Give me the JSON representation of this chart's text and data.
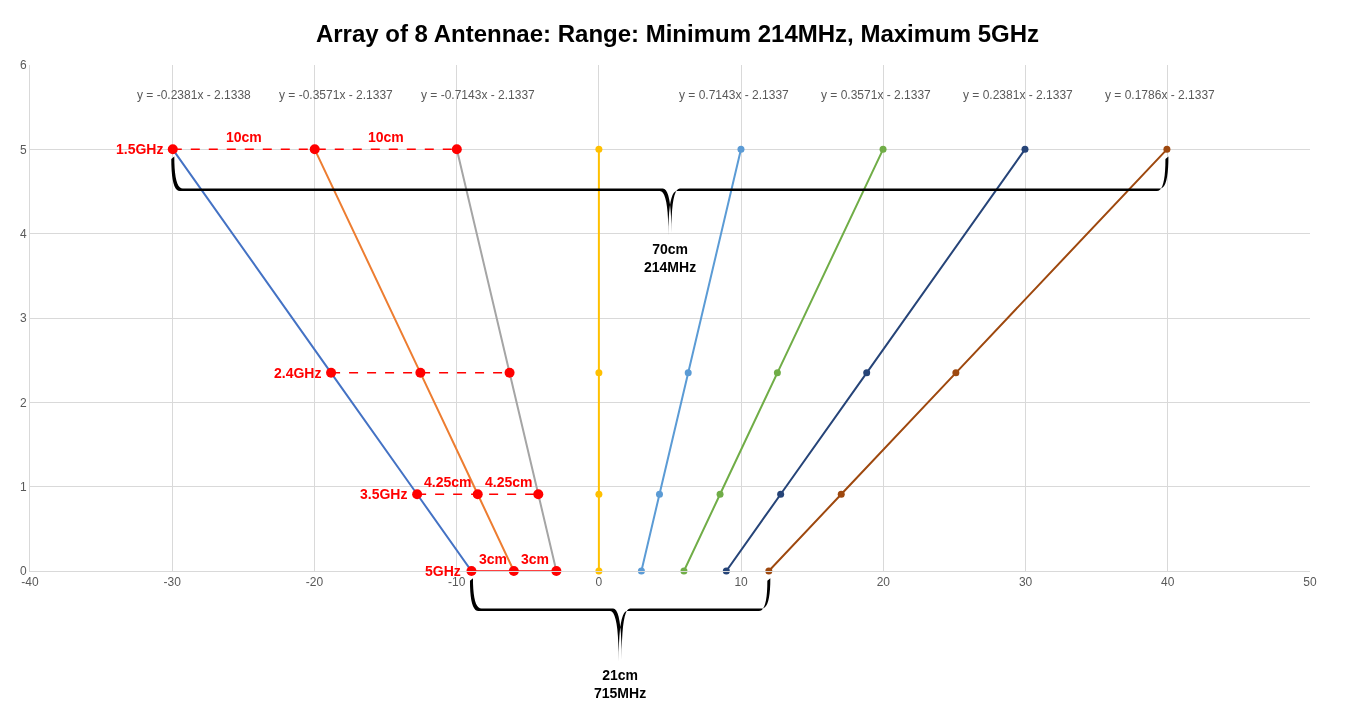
{
  "chart_data": {
    "type": "line",
    "title": "Array of 8 Antennae: Range: Minimum 214MHz, Maximum 5GHz",
    "xlim": [
      -40,
      50
    ],
    "xticks": [
      -40,
      -30,
      -20,
      -10,
      0,
      10,
      20,
      30,
      40,
      50
    ],
    "ylim": [
      0,
      6
    ],
    "yticks": [
      0,
      1,
      2,
      3,
      4,
      5,
      6
    ],
    "grid": true,
    "marker": "circle",
    "series": [
      {
        "color": "#4472c4",
        "colors": [
          "#ff0000",
          "#ff0000",
          "#ff0000",
          "#ff0000"
        ],
        "x": [
          -29.96,
          -18.83,
          -12.78,
          -8.96
        ],
        "values": [
          5,
          2.35,
          0.91,
          0
        ]
      },
      {
        "color": "#ed7d31",
        "colors": [
          "#ff0000",
          "#ff0000",
          "#ff0000",
          "#ff0000"
        ],
        "x": [
          -19.98,
          -12.55,
          -8.52,
          -5.98
        ],
        "values": [
          5,
          2.35,
          0.91,
          0
        ]
      },
      {
        "color": "#a5a5a5",
        "colors": [
          "#ff0000",
          "#ff0000",
          "#ff0000",
          "#ff0000"
        ],
        "x": [
          -9.99,
          -6.28,
          -4.26,
          -2.99
        ],
        "values": [
          5,
          2.35,
          0.91,
          0
        ]
      },
      {
        "color": "#ffc000",
        "x": [
          0,
          0,
          0,
          0
        ],
        "values": [
          5,
          2.35,
          0.91,
          0
        ]
      },
      {
        "color": "#5b9bd5",
        "x": [
          9.99,
          6.28,
          4.26,
          2.99
        ],
        "values": [
          5,
          2.35,
          0.91,
          0
        ]
      },
      {
        "color": "#70ad47",
        "x": [
          19.98,
          12.55,
          8.52,
          5.98
        ],
        "values": [
          5,
          2.35,
          0.91,
          0
        ]
      },
      {
        "color": "#264478",
        "x": [
          29.96,
          18.83,
          12.78,
          8.96
        ],
        "values": [
          5,
          2.35,
          0.91,
          0
        ]
      },
      {
        "color": "#9e480e",
        "x": [
          39.94,
          25.1,
          17.04,
          11.95
        ],
        "values": [
          5,
          2.35,
          0.91,
          0
        ]
      },
      {
        "color": "#ff0000",
        "line_style": "dashed",
        "marker": "none",
        "x": [
          -29.96,
          -9.99
        ],
        "values": [
          5,
          5
        ]
      },
      {
        "color": "#ff0000",
        "line_style": "dashed",
        "marker": "none",
        "x": [
          -18.83,
          -6.28
        ],
        "values": [
          2.35,
          2.35
        ]
      },
      {
        "color": "#ff0000",
        "line_style": "dashed",
        "marker": "none",
        "x": [
          -12.78,
          -4.26
        ],
        "values": [
          0.91,
          0.91
        ]
      },
      {
        "color": "#ff0000",
        "line_style": "solid",
        "marker": "none",
        "x": [
          -8.96,
          -2.99
        ],
        "values": [
          0,
          0
        ]
      }
    ],
    "annotations": [
      "y = -0.2381x - 2.1338",
      "y = -0.3571x - 2.1337",
      "y = -0.7143x - 2.1337",
      "y = 0.7143x - 2.1337",
      "y = 0.3571x - 2.1337",
      "y = 0.2381x - 2.1337",
      "y = 0.1786x - 2.1337",
      "70cm\n214MHz",
      "21cm\n715MHz",
      {
        "text": "1.5GHz",
        "x": -29.96,
        "y": 5
      },
      {
        "text": "10cm",
        "x": -24.97,
        "y": 5
      },
      {
        "text": "10cm",
        "x": -14.99,
        "y": 5
      },
      {
        "text": "2.4GHz",
        "x": -18.83,
        "y": 2.35
      },
      {
        "text": "3.5GHz",
        "x": -12.78,
        "y": 0.91
      },
      {
        "text": "4.25cm",
        "x": -10.65,
        "y": 0.91
      },
      {
        "text": "4.25cm",
        "x": -6.39,
        "y": 0.91
      },
      {
        "text": "5GHz",
        "x": -8.96,
        "y": 0
      },
      {
        "text": "3cm",
        "x": -7.47,
        "y": 0
      },
      {
        "text": "3cm",
        "x": -4.49,
        "y": 0
      }
    ]
  }
}
